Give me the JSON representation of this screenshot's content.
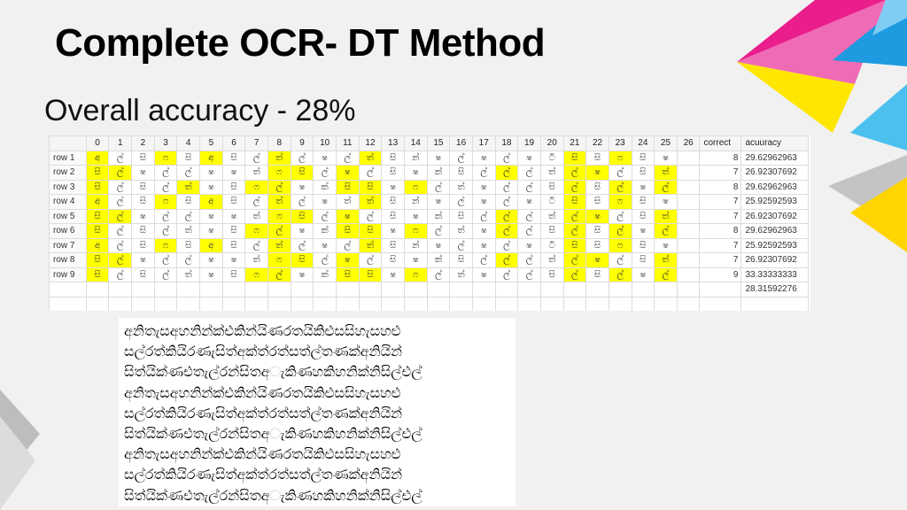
{
  "title": "Complete OCR- DT Method",
  "subtitle": "Overall accuracy - 28%",
  "colors": {
    "highlight": "#ffff00",
    "accent_magenta": "#e91e8c",
    "accent_yellow": "#ffe600",
    "accent_blue": "#1e9be0",
    "accent_grey": "#b0b0b0"
  },
  "table": {
    "headers": [
      "",
      "0",
      "1",
      "2",
      "3",
      "4",
      "5",
      "6",
      "7",
      "8",
      "9",
      "10",
      "11",
      "12",
      "13",
      "14",
      "15",
      "16",
      "17",
      "18",
      "19",
      "20",
      "21",
      "22",
      "23",
      "24",
      "25",
      "26",
      "correct",
      "acuuracy"
    ],
    "rows": [
      {
        "label": "row 1",
        "cells": [
          "අ",
          "ල්",
          "සි",
          "ෆ",
          "සි",
          "අ",
          "සි",
          "ල්",
          "ත්",
          "ල්",
          "ෂ",
          "ල්",
          "ත්",
          "සි",
          "න්",
          "ෂ",
          "ල්",
          "ෂ",
          "ල්",
          "ෂ",
          "ටි",
          "සි",
          "සි",
          "ෆ",
          "සි",
          "ෂ",
          ""
        ],
        "hl": [
          0,
          3,
          5,
          8,
          12,
          21,
          23
        ],
        "correct": "8",
        "accuracy": "29.62962963"
      },
      {
        "label": "row 2",
        "cells": [
          "සි",
          "ල්",
          "ෂ",
          "ල්",
          "ල්",
          "ෂ",
          "ෂ",
          "ත්",
          "ෆ",
          "සි",
          "ල්",
          "ෂ",
          "ල්",
          "සි",
          "ෂ",
          "ක්",
          "සි",
          "ල්",
          "ල්",
          "ල්",
          "ත්",
          "ල්",
          "ෂ",
          "ල්",
          "සි",
          "ත්",
          ""
        ],
        "hl": [
          0,
          1,
          8,
          9,
          11,
          18,
          21,
          22,
          25
        ],
        "correct": "7",
        "accuracy": "26.92307692"
      },
      {
        "label": "row 3",
        "cells": [
          "සි",
          "ල්",
          "සි",
          "ල්",
          "ත්",
          "ෂ",
          "සි",
          "ෆ",
          "ල්",
          "ෂ",
          "ක්",
          "සි",
          "සි",
          "ෂ",
          "ෆ",
          "ල්",
          "ත්",
          "ෂ",
          "ල්",
          "ල්",
          "සි",
          "ල්",
          "සි",
          "ල්",
          "ෂ",
          "ල්",
          ""
        ],
        "hl": [
          0,
          4,
          7,
          8,
          11,
          12,
          14,
          21,
          23,
          25
        ],
        "correct": "8",
        "accuracy": "29.62962963"
      },
      {
        "label": "row 4",
        "cells": [
          "අ",
          "ල්",
          "සි",
          "ෆ",
          "සි",
          "අ",
          "සි",
          "ල්",
          "ත්",
          "ල්",
          "ෂ",
          "ත්",
          "ත්",
          "සි",
          "න්",
          "ෂ",
          "ල්",
          "ෂ",
          "ල්",
          "ෂ",
          "ටි",
          "සි",
          "සි",
          "ෆ",
          "සි",
          "ෂ",
          ""
        ],
        "hl": [
          0,
          3,
          5,
          8,
          12,
          21,
          23
        ],
        "correct": "7",
        "accuracy": "25.92592593"
      },
      {
        "label": "row 5",
        "cells": [
          "සි",
          "ල්",
          "ෂ",
          "ල්",
          "ල්",
          "ෂ",
          "ෂ",
          "ත්",
          "ෆ",
          "සි",
          "ල්",
          "ෂ",
          "ල්",
          "සි",
          "ෂ",
          "ක්",
          "සි",
          "ල්",
          "ල්",
          "ල්",
          "ත්",
          "ල්",
          "ෂ",
          "ල්",
          "සි",
          "ත්",
          ""
        ],
        "hl": [
          0,
          1,
          8,
          9,
          11,
          18,
          21,
          22,
          25
        ],
        "correct": "7",
        "accuracy": "26.92307692"
      },
      {
        "label": "row 6",
        "cells": [
          "සි",
          "ල්",
          "සි",
          "ල්",
          "ත්",
          "ෂ",
          "සි",
          "ෆ",
          "ල්",
          "ෂ",
          "ක්",
          "සි",
          "සි",
          "ෂ",
          "ෆ",
          "ල්",
          "ත්",
          "ෂ",
          "ල්",
          "ල්",
          "සි",
          "ල්",
          "සි",
          "ල්",
          "ෂ",
          "ල්",
          ""
        ],
        "hl": [
          0,
          7,
          8,
          11,
          12,
          14,
          18,
          21,
          23,
          25
        ],
        "correct": "8",
        "accuracy": "29.62962963"
      },
      {
        "label": "row 7",
        "cells": [
          "අ",
          "ල්",
          "සි",
          "ෆ",
          "සි",
          "අ",
          "සි",
          "ල්",
          "ත්",
          "ල්",
          "ෂ",
          "ල්",
          "ත්",
          "සි",
          "න්",
          "ෂ",
          "ල්",
          "ෂ",
          "ල්",
          "ෂ",
          "ටි",
          "සි",
          "සි",
          "ෆ",
          "සි",
          "ෂ",
          ""
        ],
        "hl": [
          0,
          3,
          5,
          8,
          12,
          21,
          23
        ],
        "correct": "7",
        "accuracy": "25.92592593"
      },
      {
        "label": "row 8",
        "cells": [
          "සි",
          "ල්",
          "ෂ",
          "ල්",
          "ල්",
          "ෂ",
          "ෂ",
          "ත්",
          "ෆ",
          "සි",
          "ල්",
          "ෂ",
          "ල්",
          "සි",
          "ෂ",
          "ක්",
          "සි",
          "ල්",
          "ල්",
          "ල්",
          "ත්",
          "ල්",
          "ෂ",
          "ල්",
          "සි",
          "ත්",
          ""
        ],
        "hl": [
          0,
          1,
          8,
          9,
          11,
          18,
          21,
          22,
          25
        ],
        "correct": "7",
        "accuracy": "26.92307692"
      },
      {
        "label": "row 9",
        "cells": [
          "සි",
          "ල්",
          "සි",
          "ල්",
          "ත්",
          "ෂ",
          "සි",
          "ෆ",
          "ල්",
          "ෂ",
          "ක්",
          "සි",
          "සි",
          "ෂ",
          "ෆ",
          "ල්",
          "ත්",
          "ෂ",
          "ල්",
          "ල්",
          "සි",
          "ල්",
          "සි",
          "ල්",
          "ෂ",
          "ල්",
          ""
        ],
        "hl": [
          0,
          7,
          8,
          11,
          12,
          14,
          21,
          23,
          25
        ],
        "correct": "9",
        "accuracy": "33.33333333"
      }
    ],
    "total_accuracy": "28.31592276"
  },
  "sinhala_lines": [
    "අනිතැසඅහනින්ක්එකින්යිණරතයිකිළුසසිහැසහළු",
    "සල්රත්කියිරණැසිත්අක්ත්රත්සත්ල්තණක්අනියින්",
    "සිත්යික්ණඑතැල්රන්සිතඅැකිණහකිහනික්නිසිල්එල්",
    "අනිතැසඅහනින්ක්එකින්යිණරතයිකිළුසසිහැසහළු",
    "සල්රත්කියිරණැසිත්අක්ත්රත්සත්ල්තණක්අනියින්",
    "සිත්යික්ණඑතැල්රන්සිතඅැකිණහකිහනික්නිසිල්එල්",
    "අනිතැසඅහනින්ක්එකින්යිණරතයිකිළුසසිහැසහළු",
    "සල්රත්කියිරණැසිත්අක්ත්රත්සත්ල්තණක්අනියින්",
    "සිත්යික්ණඑතැල්රන්සිතඅැකිණහකිහනික්නිසිල්එල්"
  ]
}
